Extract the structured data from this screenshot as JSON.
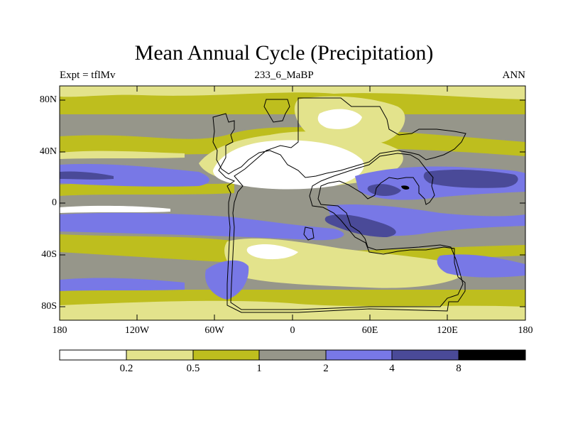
{
  "title": "Mean Annual Cycle (Precipitation)",
  "subtitle_left": "Expt = tflMv",
  "subtitle_center": "233_6_MaBP",
  "subtitle_right": "ANN",
  "lat_ticks": [
    "80N",
    "40N",
    "0",
    "40S",
    "80S"
  ],
  "lon_ticks": [
    "180",
    "120W",
    "60W",
    "0",
    "60E",
    "120E",
    "180"
  ],
  "colorbar": {
    "colors": [
      "#ffffff",
      "#e3e38c",
      "#bebe1e",
      "#96968a",
      "#7878e6",
      "#4a4a98",
      "#000000"
    ],
    "labels": [
      "0.2",
      "0.5",
      "1",
      "2",
      "4",
      "8"
    ]
  }
}
